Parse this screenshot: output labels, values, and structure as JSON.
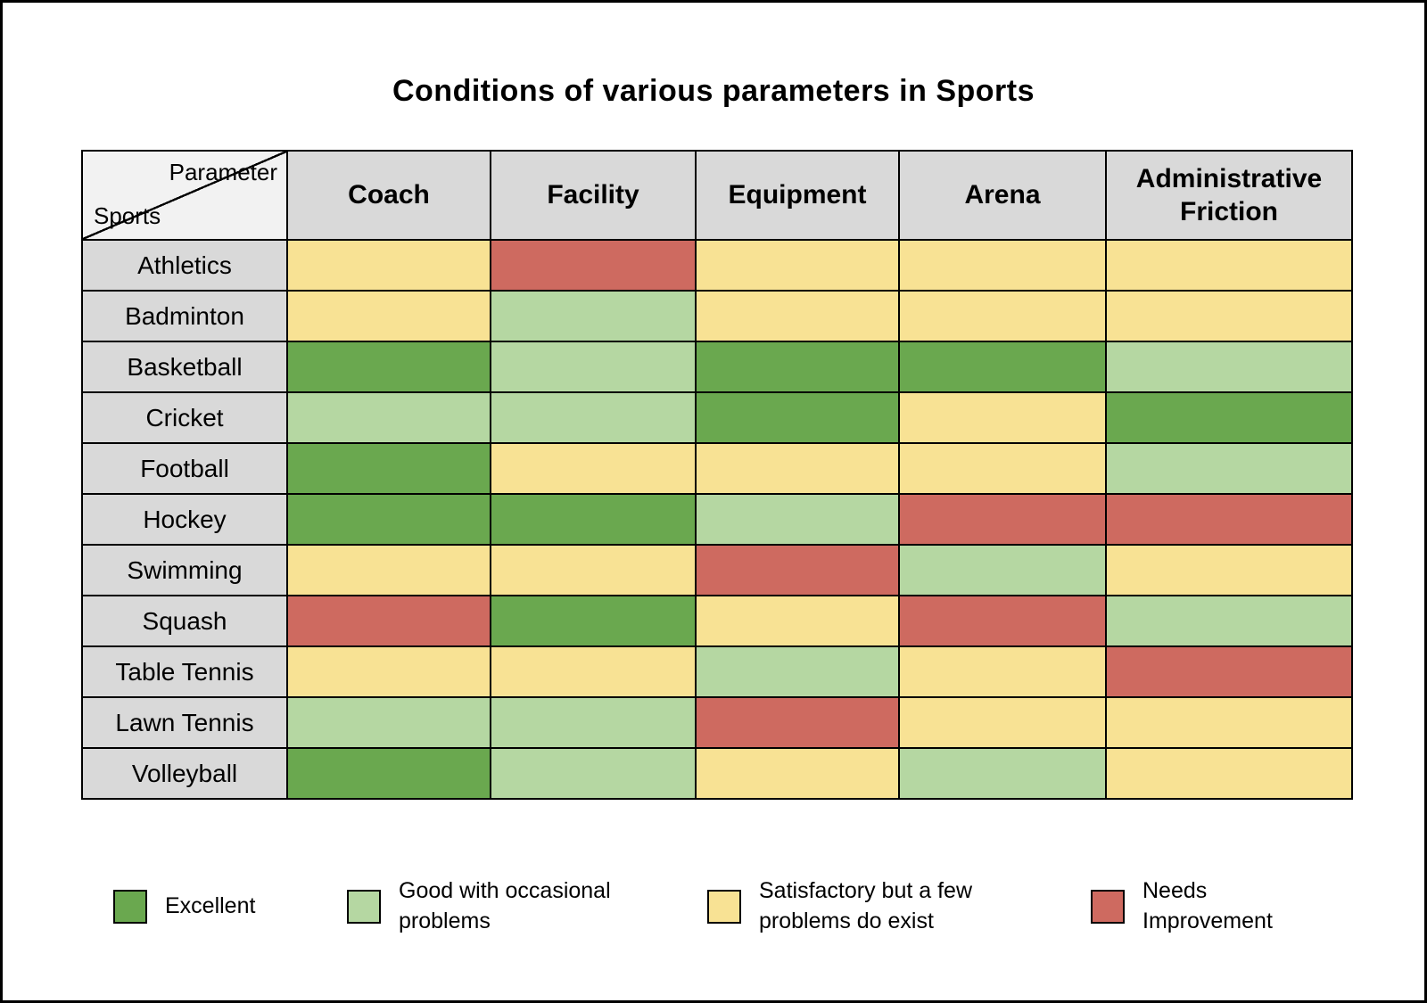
{
  "title": "Conditions of various parameters in Sports",
  "corner": {
    "top": "Parameter",
    "bottom": "Sports"
  },
  "chart_data": {
    "type": "heatmap",
    "title": "Conditions of various parameters in Sports",
    "columns": [
      "Coach",
      "Facility",
      "Equipment",
      "Arena",
      "Administrative Friction"
    ],
    "rows": [
      "Athletics",
      "Badminton",
      "Basketball",
      "Cricket",
      "Football",
      "Hockey",
      "Swimming",
      "Squash",
      "Table Tennis",
      "Lawn Tennis",
      "Volleyball"
    ],
    "values": [
      [
        "satisfactory",
        "needs_improvement",
        "satisfactory",
        "satisfactory",
        "satisfactory"
      ],
      [
        "satisfactory",
        "good",
        "satisfactory",
        "satisfactory",
        "satisfactory"
      ],
      [
        "excellent",
        "good",
        "excellent",
        "excellent",
        "good"
      ],
      [
        "good",
        "good",
        "excellent",
        "satisfactory",
        "excellent"
      ],
      [
        "excellent",
        "satisfactory",
        "satisfactory",
        "satisfactory",
        "good"
      ],
      [
        "excellent",
        "excellent",
        "good",
        "needs_improvement",
        "needs_improvement"
      ],
      [
        "satisfactory",
        "satisfactory",
        "needs_improvement",
        "good",
        "satisfactory"
      ],
      [
        "needs_improvement",
        "excellent",
        "satisfactory",
        "needs_improvement",
        "good"
      ],
      [
        "satisfactory",
        "satisfactory",
        "good",
        "satisfactory",
        "needs_improvement"
      ],
      [
        "good",
        "good",
        "needs_improvement",
        "satisfactory",
        "satisfactory"
      ],
      [
        "excellent",
        "good",
        "satisfactory",
        "good",
        "satisfactory"
      ]
    ],
    "levels": {
      "excellent": {
        "label": "Excellent",
        "color": "#6aa84f"
      },
      "good": {
        "label": "Good with occasional\nproblems",
        "color": "#b5d7a2"
      },
      "satisfactory": {
        "label": "Satisfactory but a few\nproblems do exist",
        "color": "#f8e294"
      },
      "needs_improvement": {
        "label": "Needs\nImprovement",
        "color": "#ce6a60"
      }
    },
    "legend_order": [
      "excellent",
      "good",
      "satisfactory",
      "needs_improvement"
    ],
    "legend_position": "bottom",
    "grid": "on"
  }
}
